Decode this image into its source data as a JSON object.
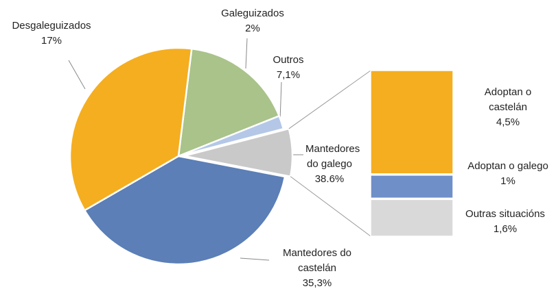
{
  "chart_data": {
    "type": "bar-of-pie",
    "categories": [
      "Desgaleguizados",
      "Galeguizados",
      "Outros",
      "Mantedores do galego",
      "Mantedores do castelán"
    ],
    "values": [
      17,
      2,
      7.1,
      38.6,
      35.3
    ],
    "value_labels": [
      "17%",
      "2%",
      "7,1%",
      "38.6%",
      "35,3%"
    ],
    "colors": [
      "#a9c38a",
      "#b4c7e7",
      "#c9c9c9",
      "#5b7fb6",
      "#f5ae1f"
    ],
    "bar": {
      "categories": [
        "Adoptan o castelán",
        "Adoptan o galego",
        "Outras situacións"
      ],
      "values": [
        4.5,
        1,
        1.6
      ],
      "value_labels": [
        "4,5%",
        "1%",
        "1,6%"
      ],
      "colors": [
        "#f5ae1f",
        "#6f8fc8",
        "#d9d9d9"
      ]
    }
  }
}
